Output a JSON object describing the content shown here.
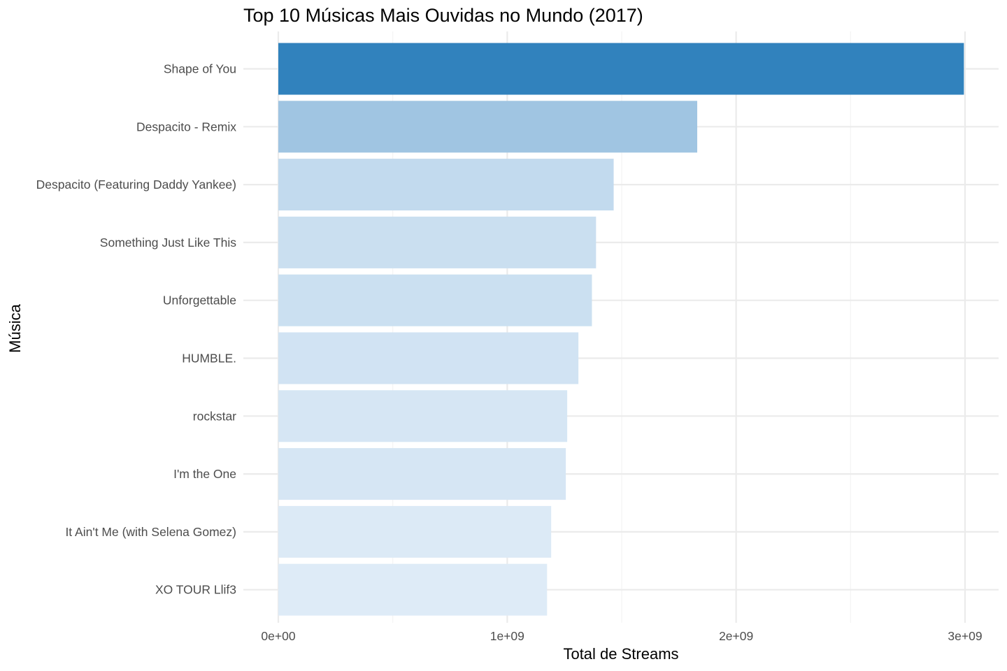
{
  "chart_data": {
    "type": "bar",
    "orientation": "horizontal",
    "title": "Top 10 Músicas Mais Ouvidas no Mundo (2017)",
    "xlabel": "Total de Streams",
    "ylabel": "Música",
    "categories": [
      "Shape of You",
      "Despacito - Remix",
      "Despacito (Featuring Daddy Yankee)",
      "Something Just Like This",
      "Unforgettable",
      "HUMBLE.",
      "rockstar",
      "I'm the One",
      "It Ain't Me (with Selena Gomez)",
      "XO TOUR Llif3"
    ],
    "values": [
      2995000000,
      1830000000,
      1465000000,
      1388000000,
      1370000000,
      1311000000,
      1262000000,
      1256000000,
      1192000000,
      1174000000
    ],
    "xlim": [
      0,
      3000000000
    ],
    "x_ticks": [
      0,
      1000000000,
      2000000000,
      3000000000
    ],
    "x_tick_labels": [
      "0e+00",
      "1e+09",
      "2e+09",
      "3e+09"
    ],
    "grid": true,
    "legend": "none",
    "fill_gradient": {
      "low": "#deebf7",
      "high": "#3182bd"
    }
  }
}
